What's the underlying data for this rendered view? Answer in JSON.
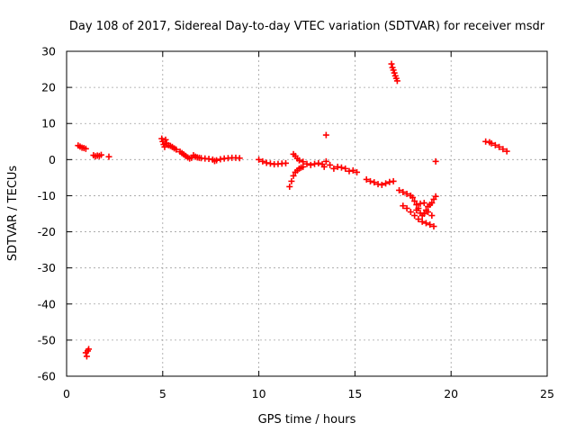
{
  "chart_data": {
    "type": "scatter",
    "title": "Day 108 of 2017, Sidereal Day-to-day VTEC variation (SDTVAR) for receiver msdr",
    "xlabel": "GPS time / hours",
    "ylabel": "SDTVAR / TECUs",
    "xlim": [
      0,
      25
    ],
    "ylim": [
      -60,
      30
    ],
    "xticks": [
      0,
      5,
      10,
      15,
      20,
      25
    ],
    "yticks": [
      -60,
      -50,
      -40,
      -30,
      -20,
      -10,
      0,
      10,
      20,
      30
    ],
    "grid": true,
    "marker": "plus",
    "marker_color": "#ff0000",
    "series": [
      {
        "name": "SDTVAR",
        "points": [
          [
            0.6,
            3.9
          ],
          [
            0.7,
            3.6
          ],
          [
            0.8,
            3.3
          ],
          [
            0.9,
            3.2
          ],
          [
            1.0,
            3.0
          ],
          [
            1.4,
            1.2
          ],
          [
            1.5,
            0.9
          ],
          [
            1.6,
            1.1
          ],
          [
            1.7,
            1.0
          ],
          [
            1.8,
            1.3
          ],
          [
            2.2,
            0.8
          ],
          [
            1.0,
            -53.5
          ],
          [
            1.05,
            -54.5
          ],
          [
            1.1,
            -53.0
          ],
          [
            1.15,
            -52.5
          ],
          [
            4.95,
            5.8
          ],
          [
            5.0,
            5.0
          ],
          [
            5.05,
            4.2
          ],
          [
            5.1,
            3.5
          ],
          [
            5.15,
            5.5
          ],
          [
            5.2,
            4.5
          ],
          [
            5.3,
            4.0
          ],
          [
            5.4,
            3.8
          ],
          [
            5.5,
            3.5
          ],
          [
            5.6,
            3.1
          ],
          [
            5.7,
            2.8
          ],
          [
            5.9,
            2.2
          ],
          [
            6.0,
            1.8
          ],
          [
            6.1,
            1.4
          ],
          [
            6.2,
            1.0
          ],
          [
            6.3,
            0.6
          ],
          [
            6.4,
            0.3
          ],
          [
            6.5,
            0.5
          ],
          [
            6.6,
            1.2
          ],
          [
            6.7,
            0.8
          ],
          [
            6.8,
            0.6
          ],
          [
            6.9,
            0.5
          ],
          [
            7.0,
            0.4
          ],
          [
            7.2,
            0.3
          ],
          [
            7.4,
            0.2
          ],
          [
            7.6,
            0.0
          ],
          [
            7.7,
            -0.4
          ],
          [
            7.8,
            -0.2
          ],
          [
            8.0,
            0.1
          ],
          [
            8.2,
            0.3
          ],
          [
            8.4,
            0.4
          ],
          [
            8.6,
            0.5
          ],
          [
            8.8,
            0.5
          ],
          [
            9.0,
            0.4
          ],
          [
            10.0,
            0.0
          ],
          [
            10.2,
            -0.5
          ],
          [
            10.4,
            -0.9
          ],
          [
            10.6,
            -1.1
          ],
          [
            10.8,
            -1.3
          ],
          [
            11.0,
            -1.2
          ],
          [
            11.2,
            -1.1
          ],
          [
            11.4,
            -1.0
          ],
          [
            11.6,
            -7.5
          ],
          [
            11.7,
            -6.0
          ],
          [
            11.8,
            -4.5
          ],
          [
            11.9,
            -3.5
          ],
          [
            12.0,
            -3.0
          ],
          [
            12.1,
            -2.5
          ],
          [
            12.2,
            -2.2
          ],
          [
            12.3,
            -2.0
          ],
          [
            11.8,
            1.5
          ],
          [
            11.9,
            1.0
          ],
          [
            12.0,
            0.3
          ],
          [
            12.1,
            -0.2
          ],
          [
            12.3,
            -0.6
          ],
          [
            12.5,
            -1.2
          ],
          [
            12.7,
            -1.5
          ],
          [
            12.9,
            -1.2
          ],
          [
            13.1,
            -1.0
          ],
          [
            13.3,
            -1.3
          ],
          [
            13.4,
            -2.0
          ],
          [
            13.5,
            6.8
          ],
          [
            13.5,
            -0.5
          ],
          [
            13.7,
            -1.5
          ],
          [
            13.9,
            -2.5
          ],
          [
            14.1,
            -2.0
          ],
          [
            14.3,
            -2.2
          ],
          [
            14.5,
            -2.5
          ],
          [
            14.7,
            -3.2
          ],
          [
            14.9,
            -3.0
          ],
          [
            15.1,
            -3.5
          ],
          [
            15.6,
            -5.5
          ],
          [
            15.8,
            -6.0
          ],
          [
            16.0,
            -6.3
          ],
          [
            16.2,
            -6.8
          ],
          [
            16.4,
            -7.0
          ],
          [
            16.6,
            -6.6
          ],
          [
            16.8,
            -6.2
          ],
          [
            17.0,
            -6.0
          ],
          [
            16.9,
            26.5
          ],
          [
            16.95,
            25.5
          ],
          [
            17.0,
            24.8
          ],
          [
            17.05,
            24.0
          ],
          [
            17.1,
            23.2
          ],
          [
            17.15,
            22.5
          ],
          [
            17.2,
            21.8
          ],
          [
            17.3,
            -8.5
          ],
          [
            17.5,
            -9.0
          ],
          [
            17.7,
            -9.5
          ],
          [
            17.9,
            -10.0
          ],
          [
            18.0,
            -10.5
          ],
          [
            17.5,
            -12.8
          ],
          [
            17.7,
            -13.5
          ],
          [
            17.9,
            -14.5
          ],
          [
            18.1,
            -15.5
          ],
          [
            18.3,
            -16.5
          ],
          [
            18.5,
            -17.2
          ],
          [
            18.7,
            -17.6
          ],
          [
            18.9,
            -18.0
          ],
          [
            19.1,
            -18.5
          ],
          [
            18.1,
            -11.5
          ],
          [
            18.2,
            -12.5
          ],
          [
            18.3,
            -13.5
          ],
          [
            18.4,
            -14.8
          ],
          [
            18.5,
            -15.5
          ],
          [
            18.6,
            -15.0
          ],
          [
            18.7,
            -14.0
          ],
          [
            18.8,
            -13.0
          ],
          [
            18.9,
            -12.5
          ],
          [
            19.0,
            -12.0
          ],
          [
            19.1,
            -11.0
          ],
          [
            19.2,
            -10.2
          ],
          [
            18.2,
            -14.0
          ],
          [
            18.4,
            -12.2
          ],
          [
            18.6,
            -12.0
          ],
          [
            18.8,
            -14.5
          ],
          [
            19.0,
            -15.5
          ],
          [
            19.2,
            -0.5
          ],
          [
            21.8,
            5.0
          ],
          [
            22.0,
            4.8
          ],
          [
            22.1,
            4.5
          ],
          [
            22.3,
            4.0
          ],
          [
            22.5,
            3.5
          ],
          [
            22.7,
            2.9
          ],
          [
            22.9,
            2.3
          ]
        ]
      }
    ]
  }
}
